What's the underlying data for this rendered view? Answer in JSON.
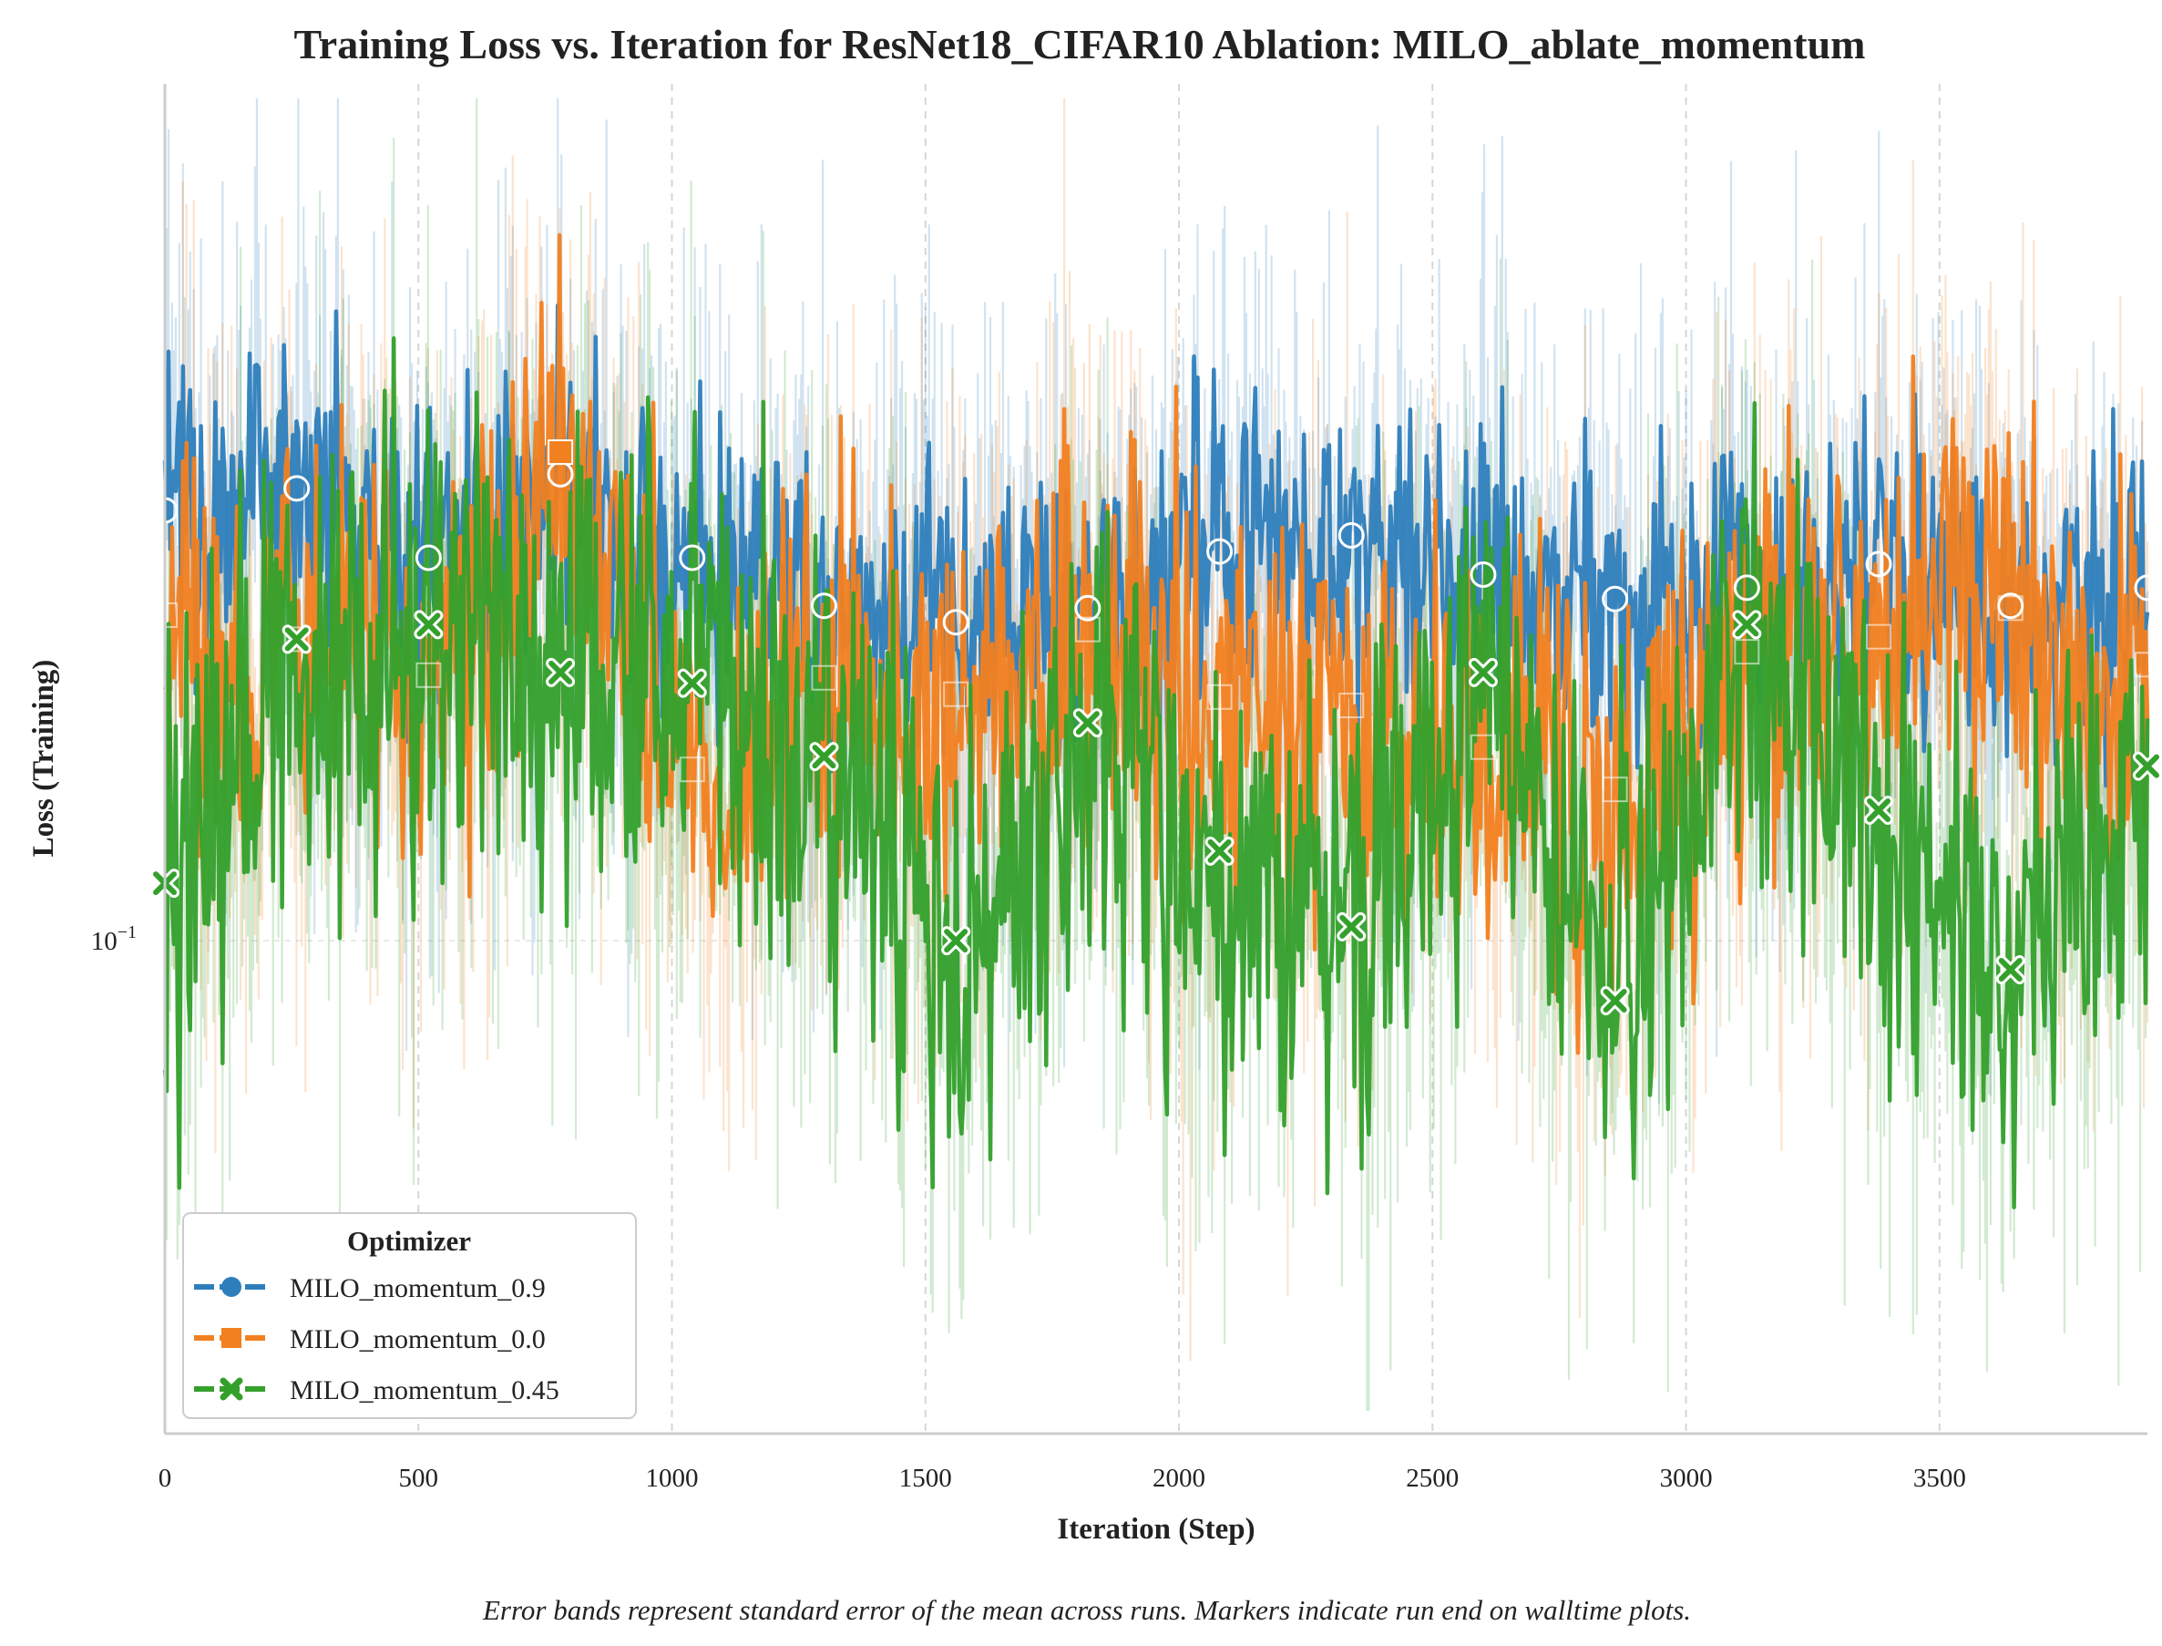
{
  "chart_data": {
    "type": "line",
    "title": "Training Loss vs. Iteration for ResNet18_CIFAR10 Ablation: MILO_ablate_momentum",
    "xlabel": "Iteration (Step)",
    "ylabel": "Loss (Training)",
    "x_scale": "linear",
    "y_scale": "log",
    "xlim": [
      0,
      3910
    ],
    "ylim": [
      0.035,
      0.62
    ],
    "x_ticks": [
      0,
      500,
      1000,
      1500,
      2000,
      2500,
      3000,
      3500
    ],
    "x_tick_labels": [
      "0",
      "500",
      "1000",
      "1500",
      "2000",
      "2500",
      "3000",
      "3500"
    ],
    "y_ticks": [
      0.1
    ],
    "y_tick_labels": [
      "10",
      "−1"
    ],
    "grid": "vertical dashed",
    "legend": {
      "title": "Optimizer",
      "placement": "lower-left"
    },
    "footnote": "Error bands represent standard error of the mean across runs. Markers indicate run end on walltime plots.",
    "series": [
      {
        "name": "MILO_momentum_0.9",
        "color": "#2e7ebc",
        "marker": "circle",
        "x": [
          0,
          260,
          520,
          780,
          1040,
          1300,
          1560,
          1820,
          2080,
          2340,
          2600,
          2860,
          3120,
          3380,
          3640,
          3910
        ],
        "y": [
          0.25,
          0.262,
          0.226,
          0.27,
          0.226,
          0.204,
          0.197,
          0.203,
          0.229,
          0.237,
          0.218,
          0.207,
          0.212,
          0.223,
          0.204,
          0.212
        ]
      },
      {
        "name": "MILO_momentum_0.0",
        "color": "#f28020",
        "marker": "square",
        "x": [
          0,
          260,
          520,
          780,
          1040,
          1300,
          1560,
          1820,
          2080,
          2340,
          2600,
          2860,
          3120,
          3380,
          3640,
          3910
        ],
        "y": [
          0.2,
          0.19,
          0.176,
          0.283,
          0.144,
          0.175,
          0.169,
          0.194,
          0.168,
          0.165,
          0.151,
          0.138,
          0.185,
          0.191,
          0.203,
          0.18
        ]
      },
      {
        "name": "MILO_momentum_0.45",
        "color": "#33a02c",
        "marker": "x",
        "x": [
          0,
          260,
          520,
          780,
          1040,
          1300,
          1560,
          1820,
          2080,
          2340,
          2600,
          2860,
          3120,
          3380,
          3640,
          3910
        ],
        "y": [
          0.113,
          0.19,
          0.196,
          0.177,
          0.173,
          0.148,
          0.1,
          0.159,
          0.121,
          0.103,
          0.177,
          0.088,
          0.196,
          0.132,
          0.094,
          0.145
        ]
      }
    ]
  }
}
